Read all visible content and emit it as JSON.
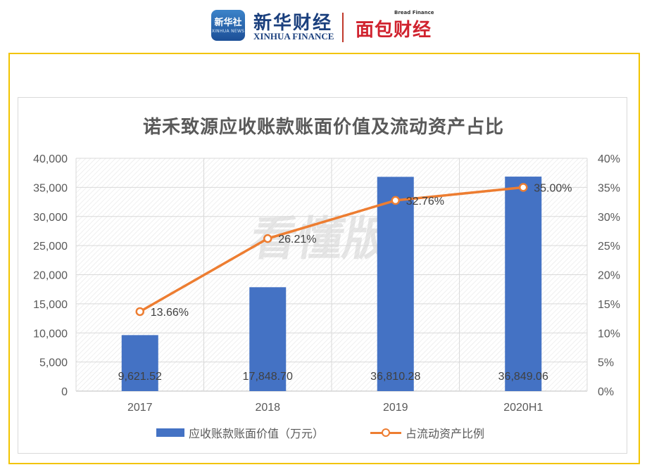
{
  "header": {
    "xinhua_badge_cn": "新华社",
    "xinhua_badge_en": "XINHUA NEWS",
    "xinhua_cn": "新华财经",
    "xinhua_en": "XINHUA FINANCE",
    "bread_cn": "面包财经",
    "bread_en": "Bread Finance"
  },
  "watermark": "看懂版",
  "colors": {
    "bar": "#4472c4",
    "line": "#ed7d31",
    "frame": "#f2c400"
  },
  "chart_data": {
    "type": "bar+line",
    "title": "诺禾致源应收账款账面价值及流动资产占比",
    "categories": [
      "2017",
      "2018",
      "2019",
      "2020H1"
    ],
    "series": [
      {
        "name": "应收账款账面价值（万元）",
        "type": "bar",
        "axis": "left",
        "values": [
          9621.52,
          17848.7,
          36810.28,
          36849.06
        ],
        "labels": [
          "9,621.52",
          "17,848.70",
          "36,810.28",
          "36,849.06"
        ]
      },
      {
        "name": "占流动资产比例",
        "type": "line",
        "axis": "right",
        "values": [
          13.66,
          26.21,
          32.76,
          35.0
        ],
        "labels": [
          "13.66%",
          "26.21%",
          "32.76%",
          "35.00%"
        ]
      }
    ],
    "y_left": {
      "min": 0,
      "max": 40000,
      "ticks": [
        "0",
        "5,000",
        "10,000",
        "15,000",
        "20,000",
        "25,000",
        "30,000",
        "35,000",
        "40,000"
      ]
    },
    "y_right": {
      "min": 0,
      "max": 40,
      "ticks": [
        "0%",
        "5%",
        "10%",
        "15%",
        "20%",
        "25%",
        "30%",
        "35%",
        "40%"
      ]
    },
    "legend_position": "bottom"
  }
}
